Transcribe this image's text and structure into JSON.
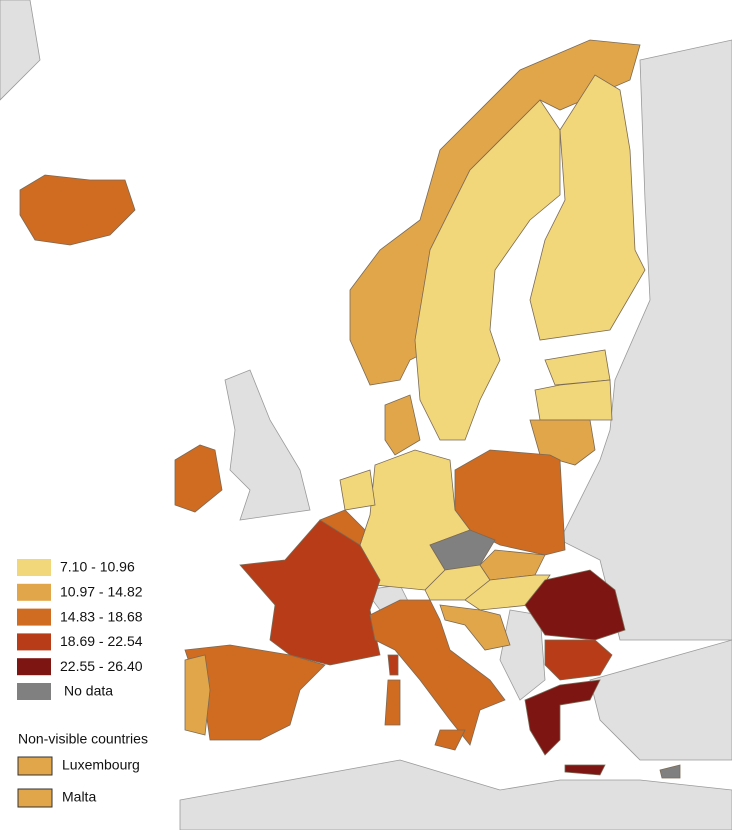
{
  "legend": {
    "entries": [
      {
        "label": "7.10 - 10.96",
        "color": "#f2d67a"
      },
      {
        "label": "10.97 - 14.82",
        "color": "#e2a64a"
      },
      {
        "label": "14.83 - 18.68",
        "color": "#d06b22"
      },
      {
        "label": "18.69 - 22.54",
        "color": "#b83c18"
      },
      {
        "label": "22.55 - 26.40",
        "color": "#7d1512"
      },
      {
        "label": "No data",
        "color": "#808080"
      }
    ]
  },
  "non_visible": {
    "title": "Non-visible countries",
    "countries": [
      {
        "label": "Luxembourg",
        "class": 1
      },
      {
        "label": "Malta",
        "class": 1
      }
    ]
  }
}
